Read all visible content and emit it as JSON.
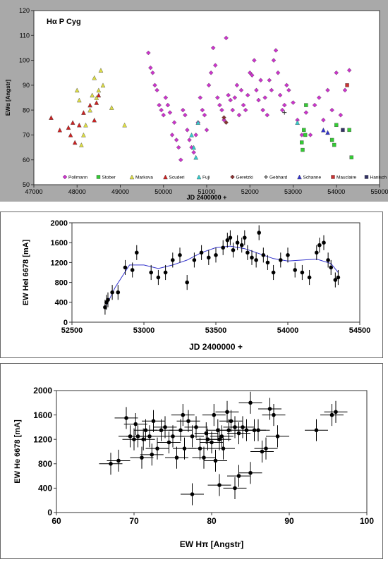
{
  "chart_data": [
    {
      "type": "scatter",
      "title": "Hα P Cyg",
      "xlabel": "JD 2400000 +",
      "ylabel": "EWα [Angstr]",
      "xlim": [
        47000,
        55000
      ],
      "ylim": [
        50,
        120
      ],
      "xticks": [
        "47000",
        "48000",
        "49000",
        "50000",
        "51000",
        "52000",
        "53000",
        "54000",
        "55000"
      ],
      "yticks": [
        "50",
        "60",
        "70",
        "80",
        "90",
        "100",
        "110",
        "120"
      ],
      "grid": false,
      "legend_position": "bottom",
      "series": [
        {
          "name": "Pollmann",
          "marker": "diamond",
          "color": "#cc33cc",
          "x": [
            49650,
            49700,
            49750,
            49800,
            49850,
            49900,
            49950,
            50000,
            50050,
            50100,
            50150,
            50200,
            50250,
            50300,
            50350,
            50400,
            50450,
            50500,
            50550,
            50600,
            50650,
            50700,
            50750,
            50800,
            50850,
            50900,
            50950,
            51000,
            51050,
            51100,
            51150,
            51200,
            51250,
            51300,
            51350,
            51400,
            51450,
            51500,
            51550,
            51600,
            51650,
            51700,
            51750,
            51800,
            51850,
            51900,
            51950,
            52000,
            52050,
            52100,
            52150,
            52200,
            52250,
            52300,
            52350,
            52400,
            52450,
            52500,
            52550,
            52600,
            52650,
            52700,
            52750,
            52800,
            52850,
            52900,
            53000,
            53100,
            53200,
            53300,
            53400,
            53500,
            53600,
            53700,
            53800,
            53900,
            54000,
            54100,
            54200,
            54300
          ],
          "y": [
            103,
            97,
            95,
            90,
            88,
            82,
            80,
            78,
            85,
            82,
            79,
            70,
            75,
            68,
            65,
            60,
            80,
            78,
            72,
            68,
            65,
            63,
            70,
            75,
            85,
            80,
            78,
            72,
            90,
            95,
            105,
            98,
            85,
            82,
            80,
            76,
            109,
            86,
            84,
            80,
            85,
            90,
            78,
            88,
            82,
            80,
            86,
            95,
            94,
            100,
            88,
            84,
            92,
            80,
            85,
            78,
            92,
            88,
            100,
            104,
            95,
            86,
            80,
            82,
            90,
            88,
            83,
            76,
            70,
            79,
            70,
            82,
            85,
            76,
            88,
            80,
            95,
            78,
            88,
            96
          ]
        },
        {
          "name": "Stober",
          "marker": "square",
          "color": "#33cc33",
          "x": [
            53200,
            53220,
            53250,
            53280,
            53300,
            53900,
            53950,
            54000,
            54300,
            54350
          ],
          "y": [
            67,
            64,
            72,
            70,
            82,
            68,
            66,
            74,
            72,
            61
          ]
        },
        {
          "name": "Markova",
          "marker": "triangle",
          "color": "#dddd44",
          "x": [
            48000,
            48050,
            48100,
            48150,
            48200,
            48300,
            48350,
            48400,
            48450,
            48500,
            48550,
            48600,
            48800,
            49100
          ],
          "y": [
            88,
            84,
            66,
            70,
            74,
            80,
            86,
            93,
            85,
            88,
            96,
            90,
            81,
            74
          ]
        },
        {
          "name": "Scuderi",
          "marker": "triangle",
          "color": "#cc2222",
          "x": [
            47400,
            47600,
            47800,
            47850,
            47900,
            47950,
            48050,
            48150,
            48300,
            48400,
            48450,
            48500
          ],
          "y": [
            77,
            72,
            73,
            70,
            75,
            67,
            74,
            79,
            82,
            76,
            83,
            86
          ]
        },
        {
          "name": "Fuji",
          "marker": "triangle",
          "color": "#33cccc",
          "x": [
            50650,
            50700,
            50750,
            50800,
            53100
          ],
          "y": [
            70,
            65,
            61,
            75,
            75
          ]
        },
        {
          "name": "Geretzki",
          "marker": "diamond",
          "color": "#883333",
          "x": [
            51400,
            51450
          ],
          "y": [
            77,
            75
          ]
        },
        {
          "name": "Gebhard",
          "marker": "plus",
          "color": "#333333",
          "x": [
            52800
          ],
          "y": [
            79
          ]
        },
        {
          "name": "Schanne",
          "marker": "triangle",
          "color": "#3333cc",
          "x": [
            53700,
            53800
          ],
          "y": [
            72,
            71
          ]
        },
        {
          "name": "Mauclaire",
          "marker": "square",
          "color": "#cc3333",
          "x": [
            54250
          ],
          "y": [
            90
          ]
        },
        {
          "name": "Hanisch",
          "marker": "square",
          "color": "#333366",
          "x": [
            54150
          ],
          "y": [
            72
          ]
        }
      ]
    },
    {
      "type": "scatter",
      "title": "",
      "xlabel": "JD 2400000 +",
      "ylabel": "EW HeI 6678 [mA]",
      "xlim": [
        52500,
        54500
      ],
      "ylim": [
        0,
        2000
      ],
      "xticks": [
        "52500",
        "53000",
        "53500",
        "54000",
        "54500"
      ],
      "yticks": [
        "0",
        "400",
        "800",
        "1200",
        "1600",
        "2000"
      ],
      "grid": false,
      "series": [
        {
          "name": "",
          "marker": "circle",
          "color": "#000000",
          "x": [
            52730,
            52740,
            52750,
            52780,
            52820,
            52870,
            52920,
            52950,
            53050,
            53100,
            53150,
            53200,
            53250,
            53300,
            53350,
            53400,
            53450,
            53500,
            53550,
            53580,
            53600,
            53620,
            53650,
            53680,
            53700,
            53720,
            53750,
            53780,
            53800,
            53830,
            53860,
            53900,
            53950,
            54000,
            54050,
            54100,
            54150,
            54200,
            54220,
            54250,
            54280,
            54300,
            54330,
            54350
          ],
          "y": [
            300,
            400,
            450,
            600,
            600,
            1100,
            1050,
            1400,
            1000,
            900,
            1000,
            1250,
            1350,
            800,
            1250,
            1400,
            1300,
            1350,
            1500,
            1650,
            1700,
            1450,
            1600,
            1550,
            1700,
            1400,
            1300,
            1250,
            1800,
            1350,
            1200,
            1000,
            1250,
            1350,
            1050,
            1000,
            900,
            1400,
            1550,
            1600,
            1250,
            1100,
            850,
            900
          ],
          "error": 150
        },
        {
          "name": "",
          "type": "line",
          "color": "#3333cc",
          "x": [
            52730,
            52800,
            52900,
            53000,
            53100,
            53200,
            53300,
            53400,
            53500,
            53600,
            53700,
            53800,
            53900,
            54000,
            54100,
            54200,
            54300,
            54350
          ],
          "y": [
            280,
            700,
            1150,
            1150,
            1080,
            1150,
            1250,
            1400,
            1500,
            1530,
            1480,
            1380,
            1280,
            1230,
            1250,
            1270,
            1180,
            1000
          ]
        }
      ]
    },
    {
      "type": "scatter",
      "title": "",
      "xlabel": "EW Hπ [Angstr]",
      "ylabel": "EW He 6678 [mA]",
      "xlim": [
        60,
        100
      ],
      "ylim": [
        0,
        2000
      ],
      "xticks": [
        "60",
        "70",
        "80",
        "90",
        "100"
      ],
      "yticks": [
        "0",
        "400",
        "800",
        "1200",
        "1600",
        "2000"
      ],
      "grid": false,
      "series": [
        {
          "name": "",
          "marker": "circle",
          "color": "#000000",
          "x": [
            67,
            68,
            69,
            69.5,
            70,
            70.2,
            70.5,
            71,
            71.2,
            71.5,
            72,
            72.3,
            72.5,
            73,
            73.5,
            74,
            74.5,
            75,
            75.5,
            76,
            76.3,
            76.5,
            77,
            77.5,
            78,
            78.5,
            79,
            79.3,
            79.5,
            80,
            80.3,
            80.5,
            80.8,
            81,
            81.3,
            81.5,
            82,
            82.2,
            82.5,
            83,
            83.5,
            84,
            84.5,
            85,
            85.5,
            86,
            86.5,
            87,
            87.5,
            88,
            88.5,
            93.5,
            95.5,
            96,
            77.5,
            81,
            83,
            83.5,
            85
          ],
          "y": [
            800,
            850,
            1550,
            1250,
            1200,
            1450,
            1250,
            900,
            1200,
            1350,
            1250,
            950,
            1500,
            1050,
            1350,
            1400,
            1150,
            1250,
            900,
            1350,
            1600,
            1050,
            1500,
            1250,
            1400,
            1050,
            900,
            1300,
            1200,
            1150,
            1600,
            850,
            1350,
            1200,
            1250,
            1050,
            1650,
            1350,
            1500,
            1400,
            1300,
            1400,
            1350,
            1800,
            1350,
            1350,
            1000,
            1050,
            1700,
            1600,
            1250,
            1350,
            1600,
            1650,
            300,
            450,
            400,
            600,
            650
          ],
          "xerror": 1.5,
          "yerror": 180
        }
      ]
    }
  ]
}
